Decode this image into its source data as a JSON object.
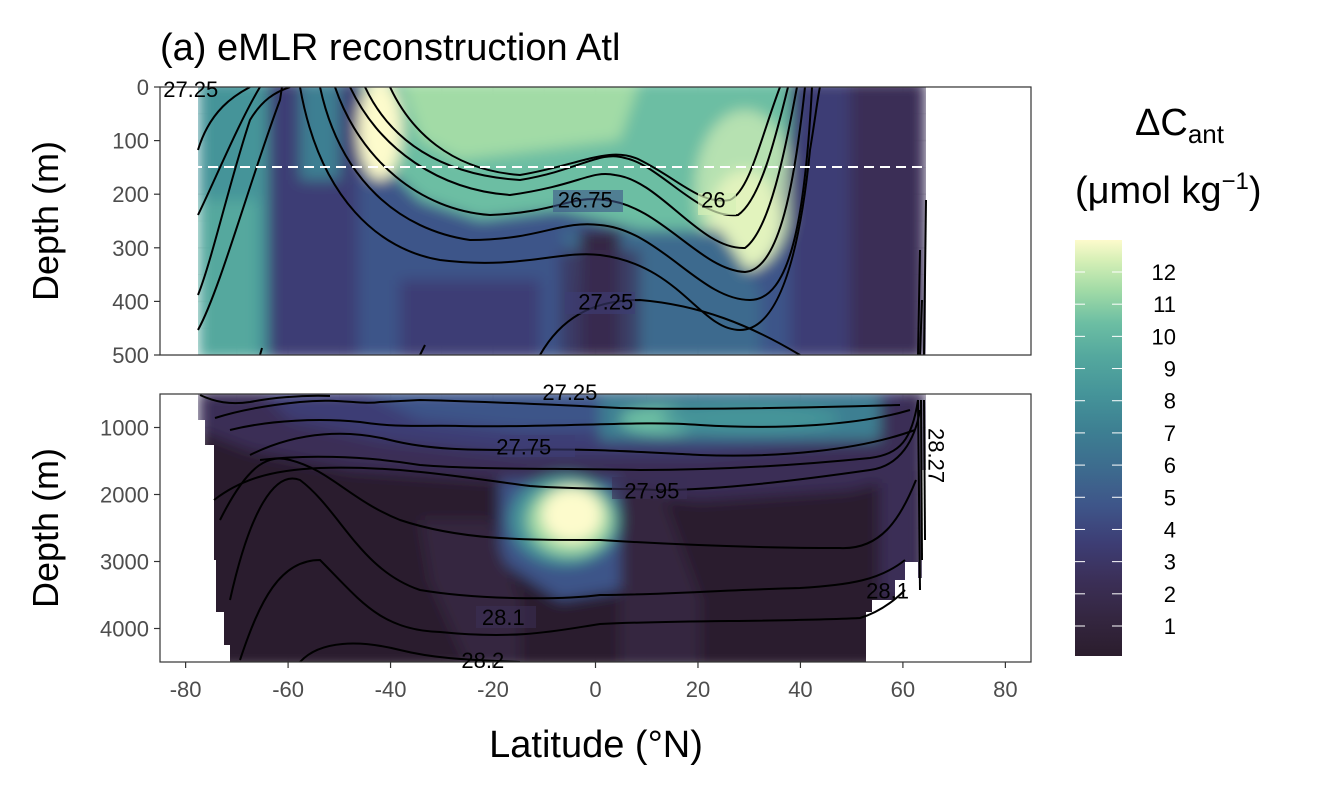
{
  "chart_data": {
    "type": "heatmap",
    "title": "(a) eMLR reconstruction    Atl",
    "xlabel": "Latitude (°N)",
    "ylabel": "Depth (m)",
    "xlim": [
      -85,
      85
    ],
    "x_ticks": [
      "-80",
      "-60",
      "-40",
      "-20",
      "0",
      "20",
      "40",
      "60",
      "80"
    ],
    "panels": [
      {
        "name": "upper",
        "ylim": [
          0,
          500
        ],
        "y_ticks": [
          "0",
          "100",
          "200",
          "300",
          "400",
          "500"
        ],
        "reference_line_depth": 150
      },
      {
        "name": "lower",
        "ylim": [
          500,
          4500
        ],
        "y_ticks": [
          "1000",
          "2000",
          "3000",
          "4000"
        ]
      }
    ],
    "legend": {
      "title_main": "ΔC",
      "title_sub": "ant",
      "unit_line": "(μmol kg",
      "unit_sup": "−1",
      "unit_end": ")",
      "placement": "right",
      "levels": [
        "1",
        "2",
        "3",
        "4",
        "5",
        "6",
        "7",
        "8",
        "9",
        "10",
        "11",
        "12"
      ],
      "colors": [
        "#2b1d2d",
        "#342640",
        "#3b2f57",
        "#3d3d74",
        "#3e5589",
        "#3d6b8e",
        "#3d7f92",
        "#459499",
        "#54a89e",
        "#6cbea3",
        "#a2dba6",
        "#d5efb6",
        "#fdfbcc"
      ]
    },
    "isopycnal_labels": [
      {
        "text": "27.25",
        "lat": -79,
        "depth": 10
      },
      {
        "text": "26.75",
        "lat": -2,
        "depth": 210
      },
      {
        "text": "26",
        "lat": 23,
        "depth": 210
      },
      {
        "text": "27.25",
        "lat": 2,
        "depth": 400
      },
      {
        "text": "27.25",
        "lat": -5,
        "depth": 500
      },
      {
        "text": "27.75",
        "lat": -14,
        "depth": 1280
      },
      {
        "text": "27.95",
        "lat": 11,
        "depth": 1940
      },
      {
        "text": "28.1",
        "lat": -18,
        "depth": 3830
      },
      {
        "text": "28.1",
        "lat": 57,
        "depth": 3430
      },
      {
        "text": "28.2",
        "lat": -22,
        "depth": 4450
      },
      {
        "text": "28.27",
        "lat": 65,
        "depth": 1300
      }
    ]
  },
  "colors": {
    "panel_border": "#333333",
    "grid": "#ebebeb",
    "background": "#ffffff",
    "reference_line": "#ffffff"
  }
}
